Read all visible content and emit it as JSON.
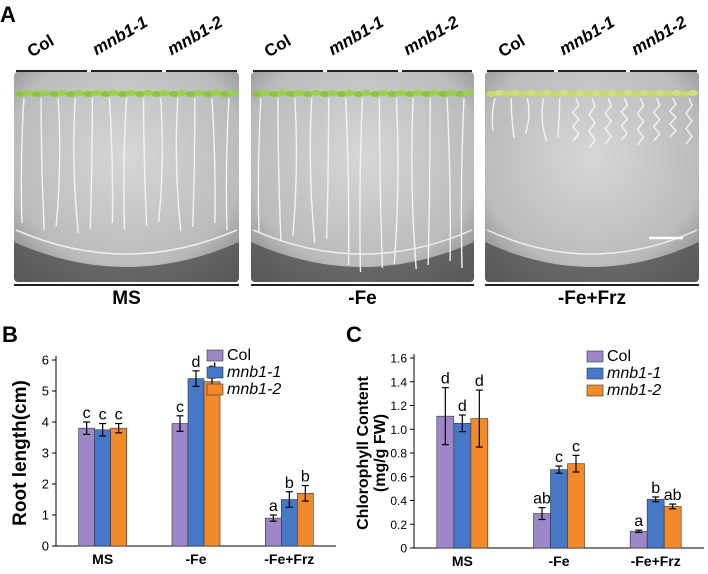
{
  "panelA": {
    "letter": "A",
    "plates": [
      {
        "condition": "MS",
        "genotypes": [
          "Col",
          "mnb1-1",
          "mnb1-2"
        ]
      },
      {
        "condition": "-Fe",
        "genotypes": [
          "Col",
          "mnb1-1",
          "mnb1-2"
        ]
      },
      {
        "condition": "-Fe+Frz",
        "genotypes": [
          "Col",
          "mnb1-1",
          "mnb1-2"
        ]
      }
    ]
  },
  "panelB": {
    "letter": "B"
  },
  "panelC": {
    "letter": "C"
  },
  "colors": {
    "Col": "#9d87c8",
    "mnb1-1": "#4778c8",
    "mnb1-2": "#f28a2c"
  },
  "chart_data": [
    {
      "type": "bar",
      "ylabel": "Root length(cm)",
      "ylim": [
        0,
        6
      ],
      "yticks": [
        "0",
        "1",
        "2",
        "3",
        "4",
        "5",
        "6"
      ],
      "categories": [
        "MS",
        "-Fe",
        "-Fe+Frz"
      ],
      "legend_position": "top-right",
      "series": [
        {
          "name": "Col",
          "values": [
            3.8,
            3.95,
            0.9
          ],
          "errors": [
            0.2,
            0.25,
            0.1
          ],
          "letters": [
            "c",
            "c",
            "a"
          ]
        },
        {
          "name": "mnb1-1",
          "values": [
            3.75,
            5.4,
            1.5
          ],
          "errors": [
            0.2,
            0.25,
            0.25
          ],
          "letters": [
            "c",
            "d",
            "b"
          ]
        },
        {
          "name": "mnb1-2",
          "values": [
            3.8,
            5.3,
            1.7
          ],
          "errors": [
            0.15,
            0.12,
            0.25
          ],
          "letters": [
            "c",
            "d",
            "b"
          ]
        }
      ]
    },
    {
      "type": "bar",
      "ylabel": "Chlorophyll Content (mg/g FW)",
      "ylim": [
        0,
        1.6
      ],
      "yticks": [
        "0",
        "0.2",
        "0.4",
        "0.6",
        "0.8",
        "1.0",
        "1.2",
        "1.4",
        "1.6"
      ],
      "categories": [
        "MS",
        "-Fe",
        "-Fe+Frz"
      ],
      "legend_position": "top-right",
      "series": [
        {
          "name": "Col",
          "values": [
            1.11,
            0.29,
            0.14
          ],
          "errors": [
            0.24,
            0.05,
            0.01
          ],
          "letters": [
            "d",
            "ab",
            "a"
          ]
        },
        {
          "name": "mnb1-1",
          "values": [
            1.05,
            0.66,
            0.41
          ],
          "errors": [
            0.07,
            0.03,
            0.02
          ],
          "letters": [
            "d",
            "c",
            "b"
          ]
        },
        {
          "name": "mnb1-2",
          "values": [
            1.09,
            0.71,
            0.35
          ],
          "errors": [
            0.24,
            0.07,
            0.02
          ],
          "letters": [
            "d",
            "c",
            "ab"
          ]
        }
      ]
    }
  ]
}
